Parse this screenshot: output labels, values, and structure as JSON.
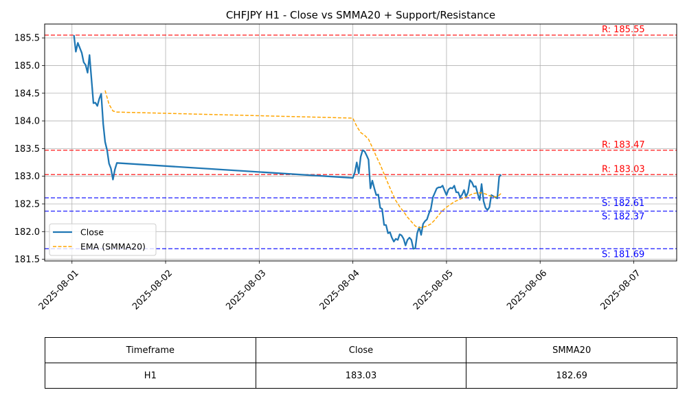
{
  "chart_data": {
    "type": "line",
    "title": "CHFJPY H1 - Close vs SMMA20 + Support/Resistance",
    "xlabel": "",
    "ylabel": "",
    "x_ticks": [
      "2025-08-01",
      "2025-08-02",
      "2025-08-03",
      "2025-08-04",
      "2025-08-05",
      "2025-08-06",
      "2025-08-07"
    ],
    "y_ticks": [
      "181.5",
      "182.0",
      "182.5",
      "183.0",
      "183.5",
      "184.0",
      "184.5",
      "185.0",
      "185.5"
    ],
    "xlim": [
      "2025-07-31 17:00",
      "2025-08-07 11:00"
    ],
    "ylim": [
      181.47,
      185.75
    ],
    "grid": true,
    "legend_position": "center-left",
    "series": [
      {
        "name": "Close",
        "color": "#1f77b4",
        "style": "solid",
        "points": [
          [
            "2025-08-01 00:30",
            185.55
          ],
          [
            "2025-08-01 01:00",
            185.25
          ],
          [
            "2025-08-01 01:30",
            185.41
          ],
          [
            "2025-08-01 02:30",
            185.23
          ],
          [
            "2025-08-01 03:00",
            185.06
          ],
          [
            "2025-08-01 03:30",
            185.01
          ],
          [
            "2025-08-01 04:00",
            184.87
          ],
          [
            "2025-08-01 04:30",
            185.19
          ],
          [
            "2025-08-01 05:30",
            184.32
          ],
          [
            "2025-08-01 06:00",
            184.33
          ],
          [
            "2025-08-01 06:30",
            184.27
          ],
          [
            "2025-08-01 07:00",
            184.4
          ],
          [
            "2025-08-01 07:30",
            184.49
          ],
          [
            "2025-08-01 08:00",
            183.95
          ],
          [
            "2025-08-01 08:30",
            183.62
          ],
          [
            "2025-08-01 09:00",
            183.47
          ],
          [
            "2025-08-01 09:30",
            183.23
          ],
          [
            "2025-08-01 10:00",
            183.14
          ],
          [
            "2025-08-01 10:30",
            182.94
          ],
          [
            "2025-08-01 11:00",
            183.12
          ],
          [
            "2025-08-01 11:30",
            183.24
          ],
          [
            "2025-08-04 00:00",
            182.97
          ],
          [
            "2025-08-04 00:30",
            183.07
          ],
          [
            "2025-08-04 01:00",
            183.25
          ],
          [
            "2025-08-04 01:30",
            183.05
          ],
          [
            "2025-08-04 02:00",
            183.35
          ],
          [
            "2025-08-04 02:30",
            183.47
          ],
          [
            "2025-08-04 03:00",
            183.45
          ],
          [
            "2025-08-04 03:30",
            183.38
          ],
          [
            "2025-08-04 04:00",
            183.3
          ],
          [
            "2025-08-04 04:30",
            182.78
          ],
          [
            "2025-08-04 05:00",
            182.92
          ],
          [
            "2025-08-04 05:30",
            182.78
          ],
          [
            "2025-08-04 06:00",
            182.66
          ],
          [
            "2025-08-04 06:30",
            182.67
          ],
          [
            "2025-08-04 07:00",
            182.43
          ],
          [
            "2025-08-04 07:30",
            182.41
          ],
          [
            "2025-08-04 08:00",
            182.12
          ],
          [
            "2025-08-04 08:30",
            182.12
          ],
          [
            "2025-08-04 09:00",
            181.97
          ],
          [
            "2025-08-04 09:30",
            181.99
          ],
          [
            "2025-08-04 10:00",
            181.89
          ],
          [
            "2025-08-04 10:30",
            181.82
          ],
          [
            "2025-08-04 11:00",
            181.87
          ],
          [
            "2025-08-04 11:30",
            181.85
          ],
          [
            "2025-08-04 12:00",
            181.95
          ],
          [
            "2025-08-04 12:30",
            181.93
          ],
          [
            "2025-08-04 13:00",
            181.87
          ],
          [
            "2025-08-04 13:30",
            181.75
          ],
          [
            "2025-08-04 14:00",
            181.85
          ],
          [
            "2025-08-04 14:30",
            181.89
          ],
          [
            "2025-08-04 15:00",
            181.85
          ],
          [
            "2025-08-04 15:30",
            181.69
          ],
          [
            "2025-08-04 16:00",
            181.7
          ],
          [
            "2025-08-04 16:30",
            181.97
          ],
          [
            "2025-08-04 17:00",
            182.08
          ],
          [
            "2025-08-04 17:30",
            181.94
          ],
          [
            "2025-08-04 18:00",
            182.14
          ],
          [
            "2025-08-04 18:30",
            182.19
          ],
          [
            "2025-08-04 19:00",
            182.22
          ],
          [
            "2025-08-04 19:30",
            182.33
          ],
          [
            "2025-08-04 20:00",
            182.41
          ],
          [
            "2025-08-04 20:30",
            182.62
          ],
          [
            "2025-08-04 21:00",
            182.7
          ],
          [
            "2025-08-04 21:30",
            182.78
          ],
          [
            "2025-08-04 22:00",
            182.8
          ],
          [
            "2025-08-04 22:30",
            182.8
          ],
          [
            "2025-08-04 23:00",
            182.83
          ],
          [
            "2025-08-04 23:30",
            182.74
          ],
          [
            "2025-08-05 00:00",
            182.66
          ],
          [
            "2025-08-05 00:30",
            182.76
          ],
          [
            "2025-08-05 01:00",
            182.79
          ],
          [
            "2025-08-05 01:30",
            182.78
          ],
          [
            "2025-08-05 02:00",
            182.83
          ],
          [
            "2025-08-05 02:30",
            182.71
          ],
          [
            "2025-08-05 03:00",
            182.71
          ],
          [
            "2025-08-05 03:30",
            182.62
          ],
          [
            "2025-08-05 04:00",
            182.67
          ],
          [
            "2025-08-05 04:30",
            182.75
          ],
          [
            "2025-08-05 05:00",
            182.63
          ],
          [
            "2025-08-05 05:30",
            182.71
          ],
          [
            "2025-08-05 06:00",
            182.93
          ],
          [
            "2025-08-05 06:30",
            182.89
          ],
          [
            "2025-08-05 07:00",
            182.81
          ],
          [
            "2025-08-05 07:30",
            182.82
          ],
          [
            "2025-08-05 08:00",
            182.68
          ],
          [
            "2025-08-05 08:30",
            182.57
          ],
          [
            "2025-08-05 09:00",
            182.86
          ],
          [
            "2025-08-05 09:30",
            182.55
          ],
          [
            "2025-08-05 10:00",
            182.43
          ],
          [
            "2025-08-05 10:30",
            182.39
          ],
          [
            "2025-08-05 11:00",
            182.44
          ],
          [
            "2025-08-05 11:30",
            182.66
          ],
          [
            "2025-08-05 12:00",
            182.64
          ],
          [
            "2025-08-05 12:30",
            182.62
          ],
          [
            "2025-08-05 13:00",
            182.6
          ],
          [
            "2025-08-05 13:30",
            182.99
          ],
          [
            "2025-08-05 14:00",
            183.03
          ]
        ]
      },
      {
        "name": "EMA (SMMA20)",
        "color": "#ffa500",
        "style": "dashed",
        "points": [
          [
            "2025-08-01 08:30",
            184.55
          ],
          [
            "2025-08-01 09:30",
            184.3
          ],
          [
            "2025-08-01 10:30",
            184.18
          ],
          [
            "2025-08-01 11:30",
            184.16
          ],
          [
            "2025-08-04 00:00",
            184.05
          ],
          [
            "2025-08-04 01:00",
            183.9
          ],
          [
            "2025-08-04 02:00",
            183.79
          ],
          [
            "2025-08-04 03:00",
            183.74
          ],
          [
            "2025-08-04 04:00",
            183.67
          ],
          [
            "2025-08-04 05:00",
            183.52
          ],
          [
            "2025-08-04 06:00",
            183.36
          ],
          [
            "2025-08-04 07:00",
            183.21
          ],
          [
            "2025-08-04 08:00",
            183.04
          ],
          [
            "2025-08-04 09:00",
            182.87
          ],
          [
            "2025-08-04 10:00",
            182.71
          ],
          [
            "2025-08-04 11:00",
            182.56
          ],
          [
            "2025-08-04 12:00",
            182.45
          ],
          [
            "2025-08-04 13:00",
            182.36
          ],
          [
            "2025-08-04 14:00",
            182.26
          ],
          [
            "2025-08-04 15:00",
            182.18
          ],
          [
            "2025-08-04 16:00",
            182.1
          ],
          [
            "2025-08-04 17:00",
            182.07
          ],
          [
            "2025-08-04 18:00",
            182.08
          ],
          [
            "2025-08-04 19:00",
            182.1
          ],
          [
            "2025-08-04 20:00",
            182.14
          ],
          [
            "2025-08-04 21:00",
            182.21
          ],
          [
            "2025-08-04 22:00",
            182.3
          ],
          [
            "2025-08-04 23:00",
            182.38
          ],
          [
            "2025-08-05 00:00",
            182.44
          ],
          [
            "2025-08-05 01:00",
            182.49
          ],
          [
            "2025-08-05 02:00",
            182.54
          ],
          [
            "2025-08-05 03:00",
            182.57
          ],
          [
            "2025-08-05 04:00",
            182.6
          ],
          [
            "2025-08-05 05:00",
            182.62
          ],
          [
            "2025-08-05 06:00",
            182.66
          ],
          [
            "2025-08-05 07:00",
            182.69
          ],
          [
            "2025-08-05 08:00",
            182.7
          ],
          [
            "2025-08-05 09:00",
            182.7
          ],
          [
            "2025-08-05 10:00",
            182.68
          ],
          [
            "2025-08-05 11:00",
            182.65
          ],
          [
            "2025-08-05 12:00",
            182.63
          ],
          [
            "2025-08-05 13:00",
            182.63
          ],
          [
            "2025-08-05 14:00",
            182.69
          ]
        ]
      }
    ],
    "levels": [
      {
        "kind": "resistance",
        "value": 185.55,
        "label": "R: 185.55",
        "color": "#ff0000"
      },
      {
        "kind": "resistance",
        "value": 183.47,
        "label": "R: 183.47",
        "color": "#ff0000"
      },
      {
        "kind": "resistance",
        "value": 183.03,
        "label": "R: 183.03",
        "color": "#ff0000"
      },
      {
        "kind": "support",
        "value": 182.61,
        "label": "S: 182.61",
        "color": "#0000ff"
      },
      {
        "kind": "support",
        "value": 182.37,
        "label": "S: 182.37",
        "color": "#0000ff"
      },
      {
        "kind": "support",
        "value": 181.69,
        "label": "S: 181.69",
        "color": "#0000ff"
      }
    ]
  },
  "table": {
    "headers": [
      "Timeframe",
      "Close",
      "SMMA20"
    ],
    "rows": [
      [
        "H1",
        "183.03",
        "182.69"
      ]
    ]
  }
}
